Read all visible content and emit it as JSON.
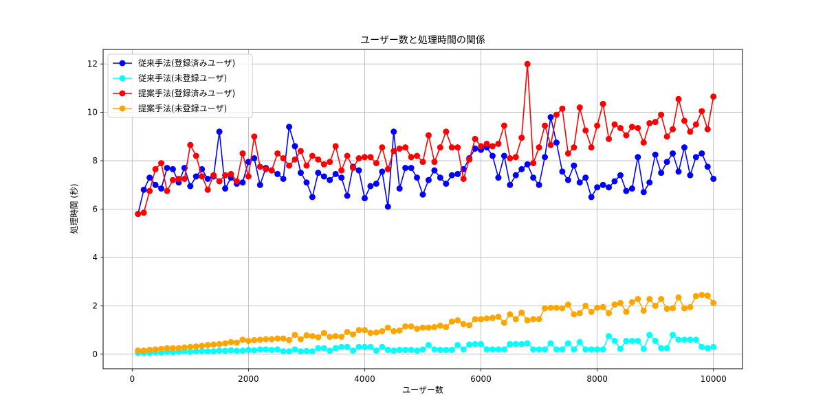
{
  "chart_data": {
    "type": "line",
    "title": "ユーザー数と処理時間の関係",
    "xlabel": "ユーザー数",
    "ylabel": "処理時間 (秒)",
    "xlim": [
      -500,
      10500
    ],
    "ylim": [
      -0.6,
      12.6
    ],
    "xticks": [
      0,
      2000,
      4000,
      6000,
      8000,
      10000
    ],
    "yticks": [
      0,
      2,
      4,
      6,
      8,
      10,
      12
    ],
    "grid": true,
    "legend_position": "top-left",
    "x": [
      100,
      200,
      300,
      400,
      500,
      600,
      700,
      800,
      900,
      1000,
      1100,
      1200,
      1300,
      1400,
      1500,
      1600,
      1700,
      1800,
      1900,
      2000,
      2100,
      2200,
      2300,
      2400,
      2500,
      2600,
      2700,
      2800,
      2900,
      3000,
      3100,
      3200,
      3300,
      3400,
      3500,
      3600,
      3700,
      3800,
      3900,
      4000,
      4100,
      4200,
      4300,
      4400,
      4500,
      4600,
      4700,
      4800,
      4900,
      5000,
      5100,
      5200,
      5300,
      5400,
      5500,
      5600,
      5700,
      5800,
      5900,
      6000,
      6100,
      6200,
      6300,
      6400,
      6500,
      6600,
      6700,
      6800,
      6900,
      7000,
      7100,
      7200,
      7300,
      7400,
      7500,
      7600,
      7700,
      7800,
      7900,
      8000,
      8100,
      8200,
      8300,
      8400,
      8500,
      8600,
      8700,
      8800,
      8900,
      9000,
      9100,
      9200,
      9300,
      9400,
      9500,
      9600,
      9700,
      9800,
      9900,
      10000
    ],
    "series": [
      {
        "name": "従来手法(登録済みユーザ)",
        "color": "#0000ff",
        "values": [
          5.8,
          6.8,
          7.3,
          7.0,
          6.85,
          7.7,
          7.65,
          7.1,
          7.7,
          6.95,
          7.35,
          7.65,
          7.25,
          7.35,
          9.2,
          6.85,
          7.3,
          7.05,
          7.1,
          7.95,
          8.1,
          7.0,
          7.7,
          7.6,
          7.45,
          7.25,
          9.4,
          8.6,
          7.5,
          7.1,
          6.5,
          7.5,
          7.35,
          7.2,
          7.45,
          7.3,
          6.55,
          7.75,
          7.6,
          6.45,
          6.95,
          7.05,
          7.55,
          6.1,
          9.2,
          6.85,
          7.7,
          7.7,
          7.3,
          6.6,
          7.2,
          7.6,
          7.3,
          7.05,
          7.4,
          7.45,
          7.65,
          8.1,
          8.5,
          8.45,
          8.55,
          8.2,
          7.3,
          8.2,
          7.0,
          7.4,
          7.65,
          7.85,
          7.3,
          7.0,
          8.15,
          9.8,
          8.75,
          7.55,
          7.2,
          7.8,
          7.1,
          7.3,
          6.5,
          6.9,
          7.0,
          6.9,
          7.15,
          7.4,
          6.75,
          6.85,
          8.15,
          6.7,
          7.1,
          8.25,
          7.5,
          7.95,
          8.3,
          7.55,
          8.55,
          7.4,
          8.15,
          8.3,
          7.75,
          7.25
        ]
      },
      {
        "name": "従来手法(未登録ユーザ)",
        "color": "#00ffff",
        "values": [
          0.05,
          0.05,
          0.05,
          0.08,
          0.07,
          0.1,
          0.09,
          0.1,
          0.12,
          0.1,
          0.12,
          0.13,
          0.12,
          0.12,
          0.15,
          0.14,
          0.16,
          0.14,
          0.15,
          0.18,
          0.16,
          0.2,
          0.2,
          0.18,
          0.2,
          0.12,
          0.12,
          0.2,
          0.12,
          0.13,
          0.12,
          0.25,
          0.25,
          0.14,
          0.25,
          0.3,
          0.3,
          0.15,
          0.3,
          0.3,
          0.3,
          0.15,
          0.3,
          0.18,
          0.15,
          0.18,
          0.18,
          0.18,
          0.15,
          0.2,
          0.38,
          0.2,
          0.18,
          0.18,
          0.18,
          0.38,
          0.2,
          0.4,
          0.42,
          0.42,
          0.2,
          0.2,
          0.2,
          0.2,
          0.42,
          0.42,
          0.42,
          0.45,
          0.2,
          0.2,
          0.2,
          0.45,
          0.2,
          0.2,
          0.45,
          0.2,
          0.5,
          0.2,
          0.2,
          0.2,
          0.2,
          0.75,
          0.55,
          0.22,
          0.55,
          0.55,
          0.55,
          0.22,
          0.8,
          0.55,
          0.25,
          0.25,
          0.8,
          0.6,
          0.6,
          0.6,
          0.6,
          0.3,
          0.25,
          0.3
        ]
      },
      {
        "name": "提案手法(登録済みユーザ)",
        "color": "#ff0000",
        "values": [
          5.8,
          5.85,
          6.75,
          7.65,
          7.9,
          6.75,
          7.2,
          7.25,
          7.25,
          8.65,
          8.2,
          7.35,
          6.8,
          7.4,
          7.15,
          7.4,
          7.45,
          7.15,
          8.3,
          7.35,
          9.0,
          7.75,
          7.65,
          7.6,
          8.3,
          8.1,
          7.8,
          8.05,
          8.4,
          7.8,
          8.2,
          8.05,
          7.85,
          7.95,
          8.6,
          7.6,
          8.2,
          7.7,
          8.1,
          8.15,
          8.15,
          7.9,
          8.55,
          7.65,
          8.4,
          8.5,
          8.55,
          8.15,
          8.2,
          7.95,
          9.05,
          7.95,
          8.55,
          9.2,
          8.55,
          8.55,
          7.25,
          8.05,
          8.9,
          8.6,
          8.7,
          8.6,
          8.7,
          9.45,
          8.1,
          8.15,
          8.95,
          12.0,
          7.9,
          8.55,
          9.45,
          8.65,
          9.9,
          10.15,
          8.3,
          8.55,
          10.2,
          9.25,
          8.55,
          9.45,
          10.35,
          8.9,
          9.5,
          9.35,
          9.05,
          9.4,
          9.35,
          8.75,
          9.55,
          9.6,
          9.9,
          9.0,
          9.3,
          10.55,
          9.65,
          9.2,
          9.5,
          10.05,
          9.3,
          10.65
        ]
      },
      {
        "name": "提案手法(未登録ユーザ)",
        "color": "#ffa500",
        "values": [
          0.15,
          0.15,
          0.18,
          0.2,
          0.22,
          0.25,
          0.25,
          0.25,
          0.28,
          0.3,
          0.32,
          0.35,
          0.38,
          0.4,
          0.42,
          0.45,
          0.5,
          0.48,
          0.6,
          0.55,
          0.58,
          0.6,
          0.62,
          0.62,
          0.65,
          0.65,
          0.58,
          0.8,
          0.62,
          0.78,
          0.75,
          0.7,
          0.88,
          0.72,
          0.75,
          0.72,
          0.92,
          0.82,
          1.0,
          1.0,
          0.88,
          0.9,
          0.95,
          1.1,
          0.95,
          0.98,
          1.15,
          1.15,
          1.05,
          1.1,
          1.1,
          1.12,
          1.18,
          1.12,
          1.35,
          1.4,
          1.25,
          1.2,
          1.45,
          1.45,
          1.48,
          1.5,
          1.55,
          1.3,
          1.65,
          1.45,
          1.72,
          1.4,
          1.45,
          1.45,
          1.9,
          1.92,
          1.92,
          1.9,
          2.05,
          1.65,
          1.7,
          2.0,
          1.75,
          1.92,
          1.95,
          1.7,
          2.05,
          2.12,
          1.75,
          2.15,
          2.28,
          1.8,
          2.28,
          2.0,
          2.28,
          1.88,
          1.9,
          2.35,
          1.9,
          1.95,
          2.4,
          2.45,
          2.42,
          2.12
        ]
      }
    ]
  }
}
